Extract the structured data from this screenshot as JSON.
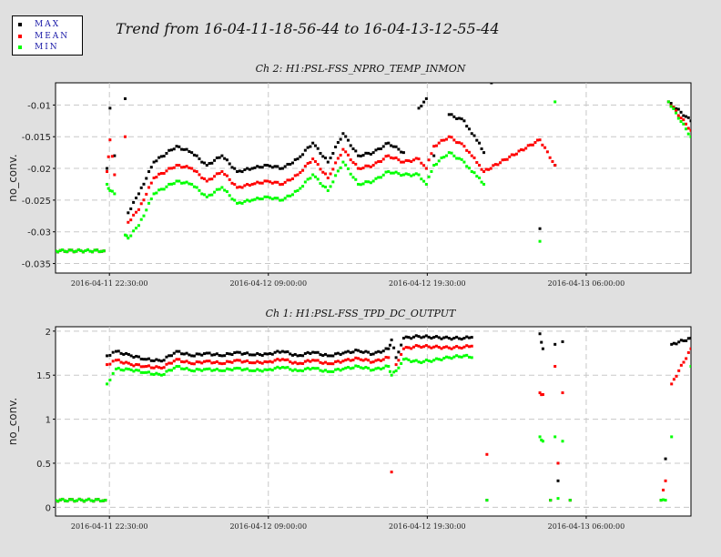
{
  "title": "Trend from 16-04-11-18-56-44 to 16-04-13-12-55-44",
  "legend": [
    {
      "label": "MAX",
      "color": "#000000"
    },
    {
      "label": "MEAN",
      "color": "#ff0000"
    },
    {
      "label": "MIN",
      "color": "#00ff00"
    }
  ],
  "colors": {
    "max": "#000000",
    "mean": "#ff0000",
    "min": "#00ff00"
  },
  "chart_data": [
    {
      "type": "scatter",
      "title": "Ch 2: H1:PSL-FSS_NPRO_TEMP_INMON",
      "ylabel": "no_conv.",
      "xlabel": "",
      "x_unit": "hours since 2016-04-11 18:56:44",
      "xlim": [
        0,
        41.98
      ],
      "ylim": [
        -0.0365,
        -0.0065
      ],
      "yticks": [
        -0.01,
        -0.015,
        -0.02,
        -0.025,
        -0.03,
        -0.035
      ],
      "yticklabels": [
        "-0.01",
        "-0.015",
        "-0.02",
        "-0.025",
        "-0.03",
        "-0.035"
      ],
      "xticks": [
        3.56,
        14.06,
        24.56,
        35.06
      ],
      "xticklabels": [
        "2016-04-11 22:30:00",
        "2016-04-12 09:00:00",
        "2016-04-12 19:30:00",
        "2016-04-13 06:00:00"
      ],
      "grid": true,
      "series": [
        {
          "name": "MAX",
          "color": "#000000",
          "x": [
            0,
            3.2,
            3.4,
            3.6,
            3.9,
            4.6,
            4.8,
            5.5,
            6.5,
            8,
            9,
            10,
            11,
            12,
            13,
            14,
            15,
            16,
            17,
            18,
            19,
            20,
            21,
            22,
            23,
            24,
            24.5,
            25,
            26,
            27,
            27.5,
            28,
            28.3,
            28.8,
            32,
            33,
            40.5,
            41.98
          ],
          "y": [
            -0.033,
            -0.033,
            -0.02,
            -0.0105,
            -0.018,
            -0.009,
            -0.027,
            -0.024,
            -0.019,
            -0.0165,
            -0.0175,
            -0.0195,
            -0.018,
            -0.0205,
            -0.02,
            -0.0195,
            -0.02,
            -0.0185,
            -0.016,
            -0.019,
            -0.0145,
            -0.018,
            -0.0175,
            -0.016,
            -0.0175,
            -0.0105,
            -0.009,
            -0.018,
            -0.0115,
            -0.0125,
            -0.0145,
            -0.016,
            -0.0175,
            -0.0065,
            -0.0295,
            -0.0195,
            -0.0095,
            -0.0125
          ]
        },
        {
          "name": "MEAN",
          "color": "#ff0000",
          "x": [
            0,
            3.2,
            3.4,
            3.6,
            3.9,
            4.6,
            4.8,
            5.5,
            6.5,
            8,
            9,
            10,
            11,
            12,
            13,
            14,
            15,
            16,
            17,
            18,
            19,
            20,
            21,
            22,
            23,
            24,
            24.5,
            25,
            26,
            27,
            27.5,
            28,
            28.3,
            32,
            33,
            40.5,
            41.98
          ],
          "y": [
            -0.033,
            -0.033,
            -0.0205,
            -0.0155,
            -0.021,
            -0.015,
            -0.0285,
            -0.0265,
            -0.0215,
            -0.0195,
            -0.02,
            -0.022,
            -0.0205,
            -0.023,
            -0.0225,
            -0.022,
            -0.0225,
            -0.021,
            -0.0185,
            -0.0215,
            -0.017,
            -0.02,
            -0.0195,
            -0.018,
            -0.019,
            -0.0185,
            -0.02,
            -0.0165,
            -0.015,
            -0.0165,
            -0.018,
            -0.0195,
            -0.0205,
            -0.0155,
            -0.0195,
            -0.0095,
            -0.014
          ]
        },
        {
          "name": "MIN",
          "color": "#00ff00",
          "x": [
            0,
            3.2,
            3.4,
            3.6,
            3.9,
            4.6,
            4.8,
            5.5,
            6.5,
            8,
            9,
            10,
            11,
            12,
            13,
            14,
            15,
            16,
            17,
            18,
            19,
            20,
            21,
            22,
            23,
            24,
            24.5,
            25,
            26,
            27,
            27.5,
            28,
            28.3,
            32,
            33,
            40.5,
            41.98
          ],
          "y": [
            -0.033,
            -0.033,
            -0.0225,
            -0.0235,
            -0.024,
            -0.0305,
            -0.031,
            -0.029,
            -0.024,
            -0.022,
            -0.0225,
            -0.0245,
            -0.023,
            -0.0255,
            -0.025,
            -0.0245,
            -0.025,
            -0.0235,
            -0.021,
            -0.0235,
            -0.019,
            -0.0225,
            -0.022,
            -0.0205,
            -0.021,
            -0.021,
            -0.0225,
            -0.0195,
            -0.0175,
            -0.019,
            -0.0205,
            -0.0215,
            -0.0225,
            -0.0315,
            -0.0095,
            -0.0095,
            -0.015
          ]
        }
      ]
    },
    {
      "type": "scatter",
      "title": "Ch 1: H1:PSL-FSS_TPD_DC_OUTPUT",
      "ylabel": "no_conv.",
      "xlabel": "",
      "x_unit": "hours since 2016-04-11 18:56:44",
      "xlim": [
        0,
        41.98
      ],
      "ylim": [
        -0.1,
        2.05
      ],
      "yticks": [
        2,
        1.5,
        1,
        0.5,
        0
      ],
      "yticklabels": [
        "2",
        "1.5",
        "1",
        "0.5",
        "0"
      ],
      "xticks": [
        3.56,
        14.06,
        24.56,
        35.06
      ],
      "xticklabels": [
        "2016-04-11 22:30:00",
        "2016-04-12 09:00:00",
        "2016-04-12 19:30:00",
        "2016-04-13 06:00:00"
      ],
      "grid": true,
      "series": [
        {
          "name": "MAX",
          "color": "#000000",
          "x": [
            0,
            3.3,
            3.4,
            4,
            5,
            6,
            7,
            8,
            9,
            10,
            11,
            12,
            13,
            14,
            15,
            16,
            17,
            18,
            19,
            20,
            21,
            22,
            22.2,
            22.5,
            23,
            24,
            25,
            26,
            27,
            27.5,
            28.5,
            32,
            32.2,
            32.7,
            33,
            33.2,
            33.5,
            34,
            40,
            40.3,
            40.7,
            41.98
          ],
          "y": [
            0.08,
            0.08,
            1.72,
            1.77,
            1.72,
            1.68,
            1.66,
            1.77,
            1.72,
            1.75,
            1.72,
            1.76,
            1.73,
            1.74,
            1.77,
            1.72,
            1.76,
            1.72,
            1.75,
            1.78,
            1.74,
            1.8,
            1.9,
            1.7,
            1.92,
            1.94,
            1.93,
            1.92,
            1.92,
            1.93,
            0.08,
            1.97,
            1.8,
            0.08,
            1.85,
            0.3,
            1.88,
            0.08,
            0.08,
            0.55,
            1.85,
            1.92
          ]
        },
        {
          "name": "MEAN",
          "color": "#ff0000",
          "x": [
            0,
            3.3,
            3.4,
            4,
            5,
            6,
            7,
            8,
            9,
            10,
            11,
            12,
            13,
            14,
            15,
            16,
            17,
            18,
            19,
            20,
            21,
            22,
            22.2,
            22.5,
            23,
            24,
            25,
            26,
            27,
            27.5,
            28.5,
            32,
            32.2,
            32.7,
            33,
            33.2,
            33.5,
            34,
            40,
            40.3,
            40.7,
            41.98
          ],
          "y": [
            0.08,
            0.08,
            1.62,
            1.67,
            1.62,
            1.6,
            1.58,
            1.68,
            1.63,
            1.66,
            1.63,
            1.67,
            1.64,
            1.65,
            1.68,
            1.63,
            1.67,
            1.63,
            1.66,
            1.69,
            1.65,
            1.7,
            0.4,
            1.62,
            1.8,
            1.83,
            1.82,
            1.81,
            1.82,
            1.83,
            0.6,
            1.3,
            1.28,
            0.08,
            1.6,
            0.5,
            1.3,
            0.08,
            0.08,
            0.3,
            1.4,
            1.8
          ]
        },
        {
          "name": "MIN",
          "color": "#00ff00",
          "x": [
            0,
            3.3,
            3.4,
            4,
            5,
            6,
            7,
            8,
            9,
            10,
            11,
            12,
            13,
            14,
            15,
            16,
            17,
            18,
            19,
            20,
            21,
            22,
            22.2,
            22.5,
            23,
            24,
            25,
            26,
            27,
            27.5,
            28.5,
            32,
            32.2,
            32.7,
            33,
            33.2,
            33.5,
            34,
            40,
            40.3,
            40.7,
            41.98
          ],
          "y": [
            0.08,
            0.08,
            1.4,
            1.57,
            1.56,
            1.53,
            1.5,
            1.6,
            1.55,
            1.57,
            1.55,
            1.58,
            1.55,
            1.56,
            1.59,
            1.55,
            1.58,
            1.54,
            1.57,
            1.6,
            1.56,
            1.6,
            1.5,
            1.55,
            1.68,
            1.65,
            1.67,
            1.7,
            1.72,
            1.7,
            0.08,
            0.8,
            0.75,
            0.08,
            0.8,
            0.1,
            0.75,
            0.08,
            0.08,
            0.08,
            0.8,
            1.6
          ]
        }
      ]
    }
  ]
}
